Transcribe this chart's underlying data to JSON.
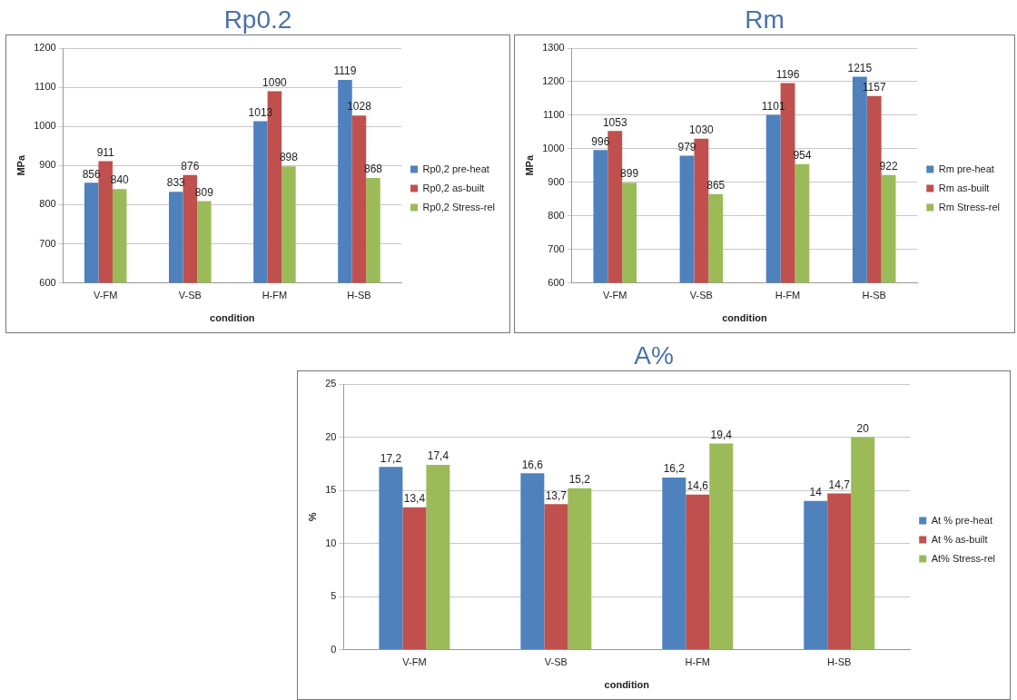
{
  "chart_data": [
    {
      "type": "bar",
      "title": "Rp0.2",
      "xlabel": "condition",
      "ylabel": "MPa",
      "categories": [
        "V-FM",
        "V-SB",
        "H-FM",
        "H-SB"
      ],
      "series": [
        {
          "name": "Rp0,2 pre-heat",
          "color": "#4f81bd",
          "values": [
            856,
            833,
            1013,
            1119
          ]
        },
        {
          "name": "Rp0,2 as-built",
          "color": "#c0504d",
          "values": [
            911,
            876,
            1090,
            1028
          ]
        },
        {
          "name": "Rp0,2 Stress-rel",
          "color": "#9bbb59",
          "values": [
            840,
            809,
            898,
            868
          ]
        }
      ],
      "ylim": [
        600,
        1200
      ],
      "yticks": [
        600,
        700,
        800,
        900,
        1000,
        1100,
        1200
      ],
      "grid": "y",
      "legend": "right",
      "data_labels": true
    },
    {
      "type": "bar",
      "title": "Rm",
      "xlabel": "condition",
      "ylabel": "MPa",
      "categories": [
        "V-FM",
        "V-SB",
        "H-FM",
        "H-SB"
      ],
      "series": [
        {
          "name": "Rm pre-heat",
          "color": "#4f81bd",
          "values": [
            996,
            979,
            1101,
            1215
          ]
        },
        {
          "name": "Rm as-built",
          "color": "#c0504d",
          "values": [
            1053,
            1030,
            1196,
            1157
          ]
        },
        {
          "name": "Rm Stress-rel",
          "color": "#9bbb59",
          "values": [
            899,
            865,
            954,
            922
          ]
        }
      ],
      "ylim": [
        600,
        1300
      ],
      "yticks": [
        600,
        700,
        800,
        900,
        1000,
        1100,
        1200,
        1300
      ],
      "grid": "y",
      "legend": "right",
      "data_labels": true
    },
    {
      "type": "bar",
      "title": "A%",
      "xlabel": "condition",
      "ylabel": "%",
      "categories": [
        "V-FM",
        "V-SB",
        "H-FM",
        "H-SB"
      ],
      "series": [
        {
          "name": "At % pre-heat",
          "color": "#4f81bd",
          "values": [
            17.2,
            16.6,
            16.2,
            14
          ],
          "value_labels": [
            "17,2",
            "16,6",
            "16,2",
            "14"
          ]
        },
        {
          "name": "At % as-built",
          "color": "#c0504d",
          "values": [
            13.4,
            13.7,
            14.6,
            14.7
          ],
          "value_labels": [
            "13,4",
            "13,7",
            "14,6",
            "14,7"
          ]
        },
        {
          "name": "At% Stress-rel",
          "color": "#9bbb59",
          "values": [
            17.4,
            15.2,
            19.4,
            20
          ],
          "value_labels": [
            "17,4",
            "15,2",
            "19,4",
            "20"
          ]
        }
      ],
      "ylim": [
        0,
        25
      ],
      "yticks": [
        0,
        5,
        10,
        15,
        20,
        25
      ],
      "grid": "y",
      "legend": "right"
    }
  ]
}
